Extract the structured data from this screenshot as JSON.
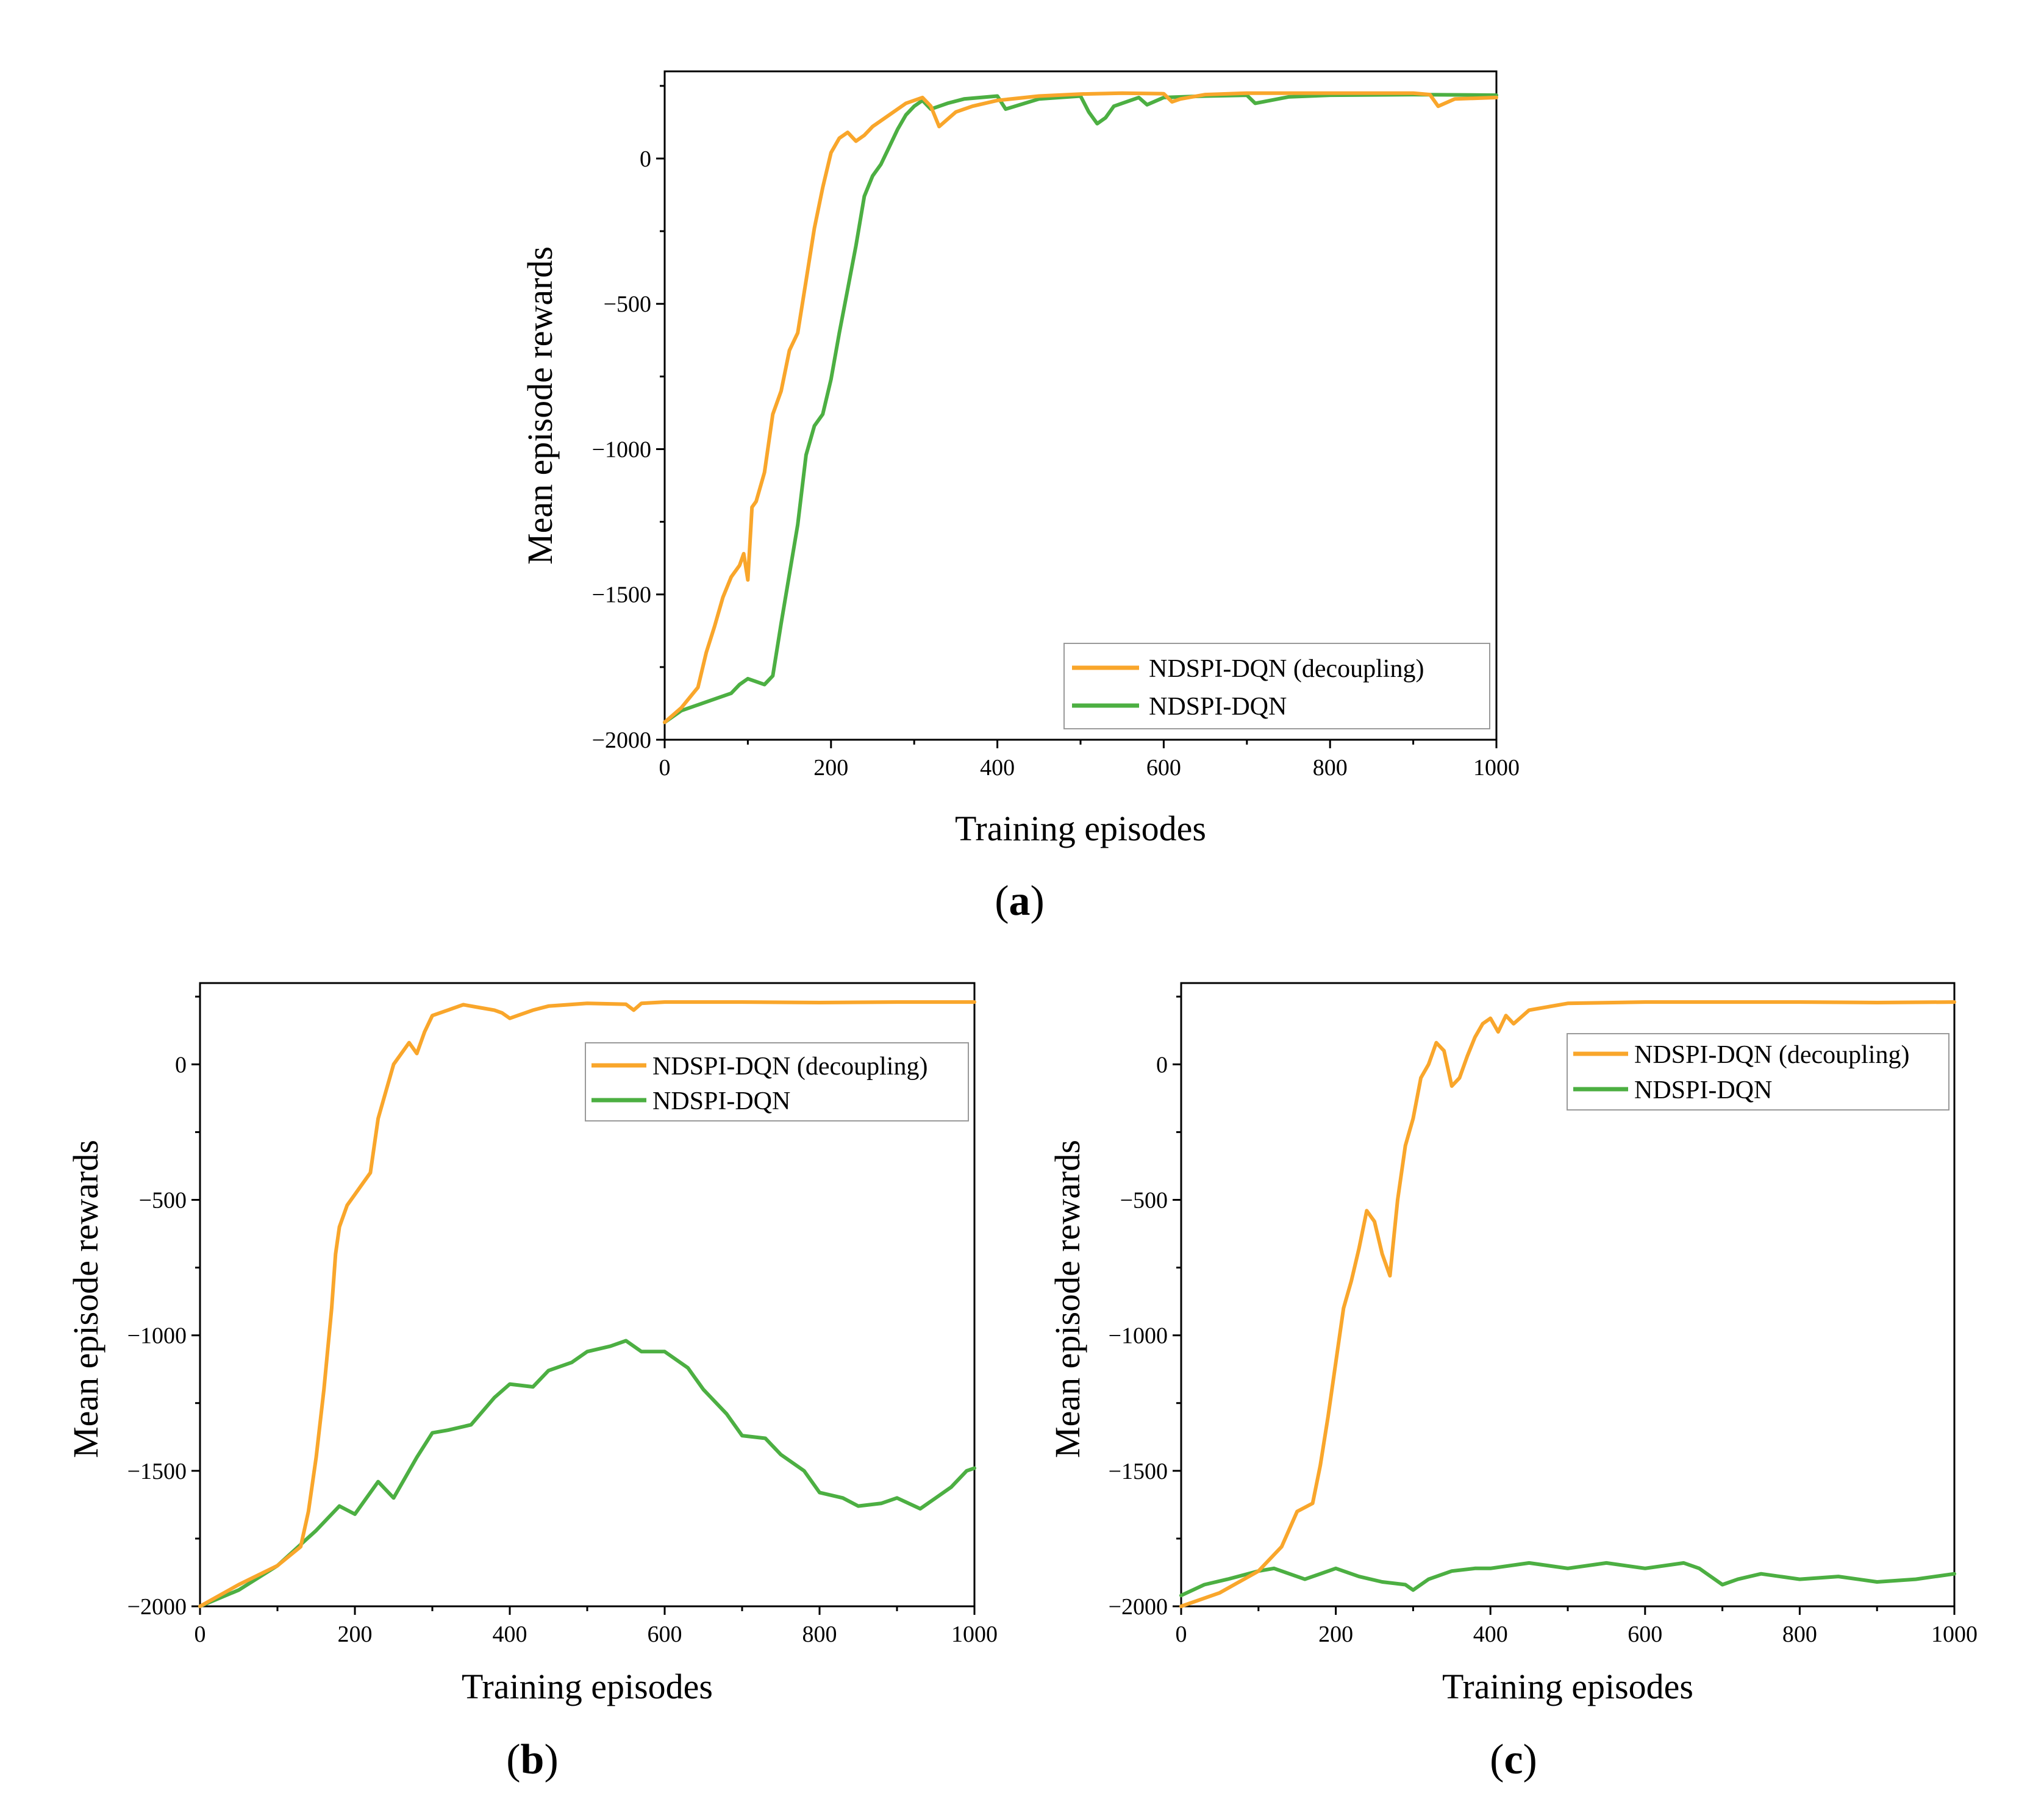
{
  "colors": {
    "decoupling": "#f9a62b",
    "standard": "#4caf42"
  },
  "chart_data": [
    {
      "type": "line",
      "caption": "a",
      "xlabel": "Training episodes",
      "ylabel": "Mean episode rewards",
      "xlim": [
        0,
        1000
      ],
      "ylim": [
        -2000,
        300
      ],
      "xticks": [
        0,
        200,
        400,
        600,
        800,
        1000
      ],
      "yticks": [
        -2000,
        -1500,
        -1000,
        -500,
        0
      ],
      "legend_position": "lower-right",
      "series": [
        {
          "name": "NDSPI-DQN (decoupling)",
          "color_key": "decoupling",
          "x": [
            0,
            20,
            40,
            50,
            60,
            70,
            80,
            90,
            95,
            100,
            105,
            110,
            120,
            130,
            140,
            150,
            160,
            170,
            180,
            190,
            200,
            210,
            220,
            230,
            240,
            250,
            270,
            290,
            310,
            320,
            330,
            350,
            370,
            400,
            450,
            500,
            550,
            600,
            610,
            620,
            650,
            700,
            800,
            900,
            920,
            930,
            950,
            1000
          ],
          "y": [
            -1940,
            -1890,
            -1820,
            -1700,
            -1610,
            -1510,
            -1440,
            -1400,
            -1360,
            -1450,
            -1200,
            -1180,
            -1080,
            -880,
            -800,
            -660,
            -600,
            -420,
            -240,
            -100,
            20,
            70,
            90,
            60,
            80,
            110,
            150,
            190,
            210,
            180,
            110,
            160,
            180,
            200,
            215,
            222,
            225,
            223,
            195,
            205,
            220,
            225,
            225,
            225,
            220,
            180,
            205,
            210
          ]
        },
        {
          "name": "NDSPI-DQN",
          "color_key": "standard",
          "x": [
            0,
            20,
            40,
            60,
            80,
            90,
            100,
            110,
            120,
            130,
            140,
            150,
            160,
            170,
            180,
            190,
            200,
            210,
            220,
            230,
            240,
            250,
            260,
            270,
            280,
            290,
            300,
            310,
            320,
            340,
            360,
            380,
            400,
            410,
            450,
            500,
            510,
            520,
            530,
            540,
            560,
            570,
            580,
            600,
            650,
            700,
            710,
            750,
            800,
            900,
            1000
          ],
          "y": [
            -1940,
            -1900,
            -1880,
            -1860,
            -1840,
            -1810,
            -1790,
            -1800,
            -1810,
            -1780,
            -1600,
            -1430,
            -1260,
            -1020,
            -920,
            -880,
            -760,
            -600,
            -450,
            -300,
            -130,
            -60,
            -20,
            40,
            100,
            150,
            180,
            200,
            170,
            190,
            205,
            210,
            215,
            170,
            205,
            215,
            160,
            120,
            140,
            180,
            200,
            210,
            185,
            210,
            215,
            218,
            190,
            212,
            218,
            220,
            218
          ]
        }
      ]
    },
    {
      "type": "line",
      "caption": "b",
      "xlabel": "Training episodes",
      "ylabel": "Mean episode rewards",
      "xlim": [
        0,
        1000
      ],
      "ylim": [
        -2000,
        300
      ],
      "xticks": [
        0,
        200,
        400,
        600,
        800,
        1000
      ],
      "yticks": [
        -2000,
        -1500,
        -1000,
        -500,
        0
      ],
      "legend_position": "upper-right",
      "series": [
        {
          "name": "NDSPI-DQN (decoupling)",
          "color_key": "decoupling",
          "x": [
            0,
            50,
            100,
            130,
            140,
            150,
            160,
            170,
            175,
            180,
            190,
            200,
            210,
            220,
            230,
            240,
            250,
            260,
            270,
            280,
            290,
            300,
            320,
            340,
            360,
            380,
            390,
            400,
            410,
            430,
            450,
            500,
            550,
            560,
            570,
            600,
            700,
            800,
            900,
            1000
          ],
          "y": [
            -2000,
            -1920,
            -1850,
            -1780,
            -1650,
            -1450,
            -1200,
            -900,
            -700,
            -600,
            -520,
            -480,
            -440,
            -400,
            -200,
            -100,
            0,
            40,
            80,
            40,
            120,
            180,
            200,
            220,
            210,
            200,
            190,
            170,
            180,
            200,
            215,
            225,
            222,
            200,
            225,
            230,
            230,
            228,
            230,
            230
          ]
        },
        {
          "name": "NDSPI-DQN",
          "color_key": "standard",
          "x": [
            0,
            50,
            100,
            150,
            180,
            200,
            230,
            250,
            280,
            300,
            320,
            350,
            380,
            400,
            430,
            450,
            480,
            500,
            530,
            550,
            570,
            600,
            630,
            650,
            680,
            700,
            730,
            750,
            780,
            800,
            830,
            850,
            880,
            900,
            930,
            950,
            970,
            990,
            1000
          ],
          "y": [
            -2000,
            -1940,
            -1850,
            -1720,
            -1630,
            -1660,
            -1540,
            -1600,
            -1450,
            -1360,
            -1350,
            -1330,
            -1230,
            -1180,
            -1190,
            -1130,
            -1100,
            -1060,
            -1040,
            -1020,
            -1060,
            -1060,
            -1120,
            -1200,
            -1290,
            -1370,
            -1380,
            -1440,
            -1500,
            -1580,
            -1600,
            -1630,
            -1620,
            -1600,
            -1640,
            -1600,
            -1560,
            -1500,
            -1490
          ]
        }
      ]
    },
    {
      "type": "line",
      "caption": "c",
      "xlabel": "Training episodes",
      "ylabel": "Mean episode rewards",
      "xlim": [
        0,
        1000
      ],
      "ylim": [
        -2000,
        300
      ],
      "xticks": [
        0,
        200,
        400,
        600,
        800,
        1000
      ],
      "yticks": [
        -2000,
        -1500,
        -1000,
        -500,
        0
      ],
      "legend_position": "upper-right",
      "series": [
        {
          "name": "NDSPI-DQN (decoupling)",
          "color_key": "decoupling",
          "x": [
            0,
            50,
            100,
            130,
            150,
            170,
            180,
            190,
            200,
            210,
            220,
            230,
            240,
            250,
            260,
            270,
            280,
            290,
            300,
            310,
            320,
            330,
            340,
            350,
            360,
            370,
            380,
            390,
            400,
            410,
            420,
            430,
            450,
            500,
            600,
            700,
            800,
            900,
            1000
          ],
          "y": [
            -2000,
            -1950,
            -1870,
            -1780,
            -1650,
            -1620,
            -1480,
            -1300,
            -1100,
            -900,
            -800,
            -680,
            -540,
            -580,
            -700,
            -780,
            -500,
            -300,
            -200,
            -50,
            0,
            80,
            50,
            -80,
            -50,
            30,
            100,
            150,
            170,
            120,
            180,
            150,
            200,
            225,
            230,
            230,
            230,
            228,
            230
          ]
        },
        {
          "name": "NDSPI-DQN",
          "color_key": "standard",
          "x": [
            0,
            30,
            60,
            100,
            120,
            140,
            160,
            200,
            230,
            260,
            290,
            300,
            320,
            350,
            380,
            400,
            450,
            500,
            550,
            600,
            650,
            670,
            700,
            720,
            750,
            800,
            850,
            900,
            950,
            1000
          ],
          "y": [
            -1960,
            -1920,
            -1900,
            -1870,
            -1860,
            -1880,
            -1900,
            -1860,
            -1890,
            -1910,
            -1920,
            -1940,
            -1900,
            -1870,
            -1860,
            -1860,
            -1840,
            -1860,
            -1840,
            -1860,
            -1840,
            -1860,
            -1920,
            -1900,
            -1880,
            -1900,
            -1890,
            -1910,
            -1900,
            -1880
          ]
        }
      ]
    }
  ]
}
